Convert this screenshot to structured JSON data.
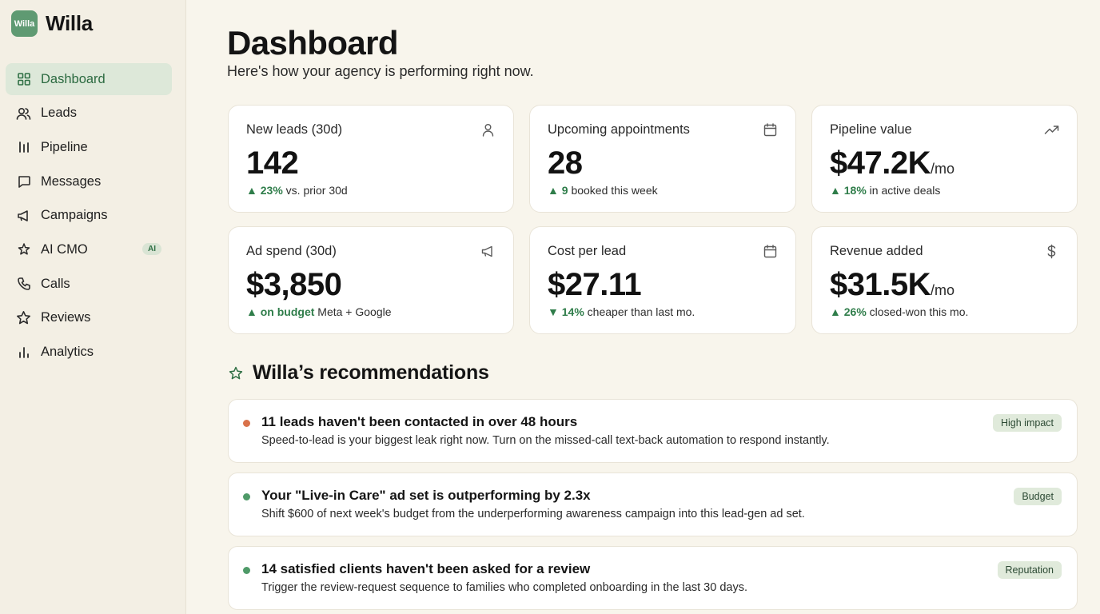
{
  "brand": {
    "logo_text": "Willa",
    "name": "Willa"
  },
  "sidebar": {
    "items": [
      {
        "label": "Dashboard",
        "icon": "grid-icon",
        "active": true
      },
      {
        "label": "Leads",
        "icon": "users-icon"
      },
      {
        "label": "Pipeline",
        "icon": "columns-icon"
      },
      {
        "label": "Messages",
        "icon": "chat-icon"
      },
      {
        "label": "Campaigns",
        "icon": "megaphone-icon"
      },
      {
        "label": "AI CMO",
        "icon": "sparkle-icon",
        "badge": "AI"
      },
      {
        "label": "Calls",
        "icon": "phone-icon"
      },
      {
        "label": "Reviews",
        "icon": "star-icon"
      },
      {
        "label": "Analytics",
        "icon": "bar-chart-icon"
      }
    ]
  },
  "header": {
    "title": "Dashboard",
    "subtitle": "Here's how your agency is performing right now."
  },
  "metrics": [
    {
      "label": "New leads (30d)",
      "value": "142",
      "unit": "",
      "delta_arrow": "▲",
      "delta_value": "23%",
      "delta_text": "vs. prior 30d",
      "icon": "user-icon"
    },
    {
      "label": "Upcoming appointments",
      "value": "28",
      "unit": "",
      "delta_arrow": "▲",
      "delta_value": "9",
      "delta_text": "booked this week",
      "icon": "calendar-icon"
    },
    {
      "label": "Pipeline value",
      "value": "$47.2K",
      "unit": "/mo",
      "delta_arrow": "▲",
      "delta_value": "18%",
      "delta_text": "in active deals",
      "icon": "trend-up-icon"
    },
    {
      "label": "Ad spend (30d)",
      "value": "$3,850",
      "unit": "",
      "delta_arrow": "▲",
      "delta_value": "on budget",
      "delta_text": "Meta + Google",
      "icon": "megaphone-icon"
    },
    {
      "label": "Cost per lead",
      "value": "$27.11",
      "unit": "",
      "delta_arrow": "▼",
      "delta_value": "14%",
      "delta_text": "cheaper than last mo.",
      "icon": "calendar-icon"
    },
    {
      "label": "Revenue added",
      "value": "$31.5K",
      "unit": "/mo",
      "delta_arrow": "▲",
      "delta_value": "26%",
      "delta_text": "closed-won this mo.",
      "icon": "dollar-icon"
    }
  ],
  "recommendations": {
    "heading": "Willa’s recommendations",
    "items": [
      {
        "title": "11 leads haven't been contacted in over 48 hours",
        "description": "Speed-to-lead is your biggest leak right now. Turn on the missed-call text-back automation to respond instantly.",
        "tag": "High impact",
        "dot_color": "#d9724a"
      },
      {
        "title": "Your \"Live-in Care\" ad set is outperforming by 2.3x",
        "description": "Shift $600 of next week's budget from the underperforming awareness campaign into this lead-gen ad set.",
        "tag": "Budget",
        "dot_color": "#4f9a68"
      },
      {
        "title": "14 satisfied clients haven't been asked for a review",
        "description": "Trigger the review-request sequence to families who completed onboarding in the last 30 days.",
        "tag": "Reputation",
        "dot_color": "#4f9a68"
      }
    ]
  },
  "colors": {
    "accent": "#2f6f44",
    "active_nav_bg": "#dde8d9",
    "positive": "#2f7d4a",
    "page_bg": "#f8f5ec"
  }
}
